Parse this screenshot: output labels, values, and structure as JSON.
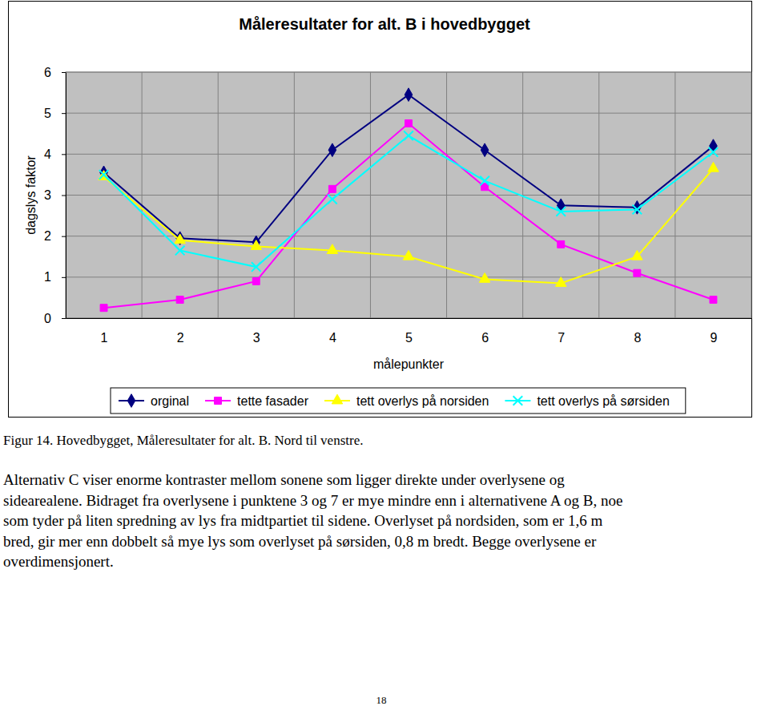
{
  "chart_data": {
    "type": "line",
    "title": "Måleresultater for alt. B i hovedbygget",
    "x_label": "målepunkter",
    "y_label": "dagslys faktor",
    "categories": [
      "1",
      "2",
      "3",
      "4",
      "5",
      "6",
      "7",
      "8",
      "9"
    ],
    "series": [
      {
        "name": "orginal",
        "color": "#000080",
        "marker": "diamond",
        "values": [
          3.55,
          1.95,
          1.85,
          4.1,
          5.45,
          4.1,
          2.75,
          2.7,
          4.2
        ]
      },
      {
        "name": "tette fasader",
        "color": "#ff00ff",
        "marker": "square",
        "values": [
          0.25,
          0.45,
          0.9,
          3.15,
          4.75,
          3.2,
          1.8,
          1.1,
          0.45
        ]
      },
      {
        "name": "tett overlys på norsiden",
        "color": "#ffff00",
        "marker": "triangle",
        "values": [
          3.45,
          1.9,
          1.75,
          1.65,
          1.5,
          0.95,
          0.85,
          1.5,
          3.65
        ]
      },
      {
        "name": "tett overlys på sørsiden",
        "color": "#00ffff",
        "marker": "x",
        "values": [
          3.5,
          1.65,
          1.25,
          2.9,
          4.45,
          3.35,
          2.6,
          2.65,
          4.05
        ]
      }
    ],
    "ylim": [
      0,
      6
    ],
    "yticks": [
      0,
      1,
      2,
      3,
      4,
      5,
      6
    ],
    "grid": true,
    "legend": "bottom"
  },
  "caption": "Figur 14. Hovedbygget, Måleresultater for alt. B. Nord til venstre.",
  "paragraph": [
    "Alternativ C viser enorme kontraster mellom sonene som ligger direkte under overlysene og",
    "sidearealene. Bidraget fra overlysene i punktene 3 og 7 er mye mindre enn i alternativene A og B, noe",
    "som tyder på liten spredning av lys fra midtpartiet til sidene. Overlyset på nordsiden, som er 1,6 m",
    "bred, gir mer enn dobbelt så mye lys som overlyset på sørsiden, 0,8 m bredt. Begge overlysene er",
    "overdimensjonert."
  ],
  "page_number": "18"
}
